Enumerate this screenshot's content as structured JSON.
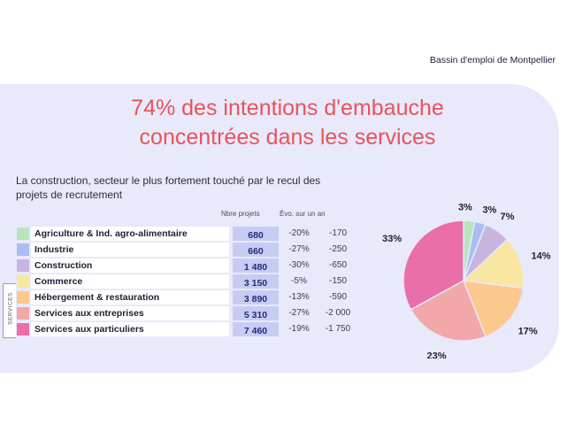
{
  "header": {
    "region": "Bassin d'emploi de Montpellier"
  },
  "title_line1": "74% des intentions d'embauche",
  "title_line2": "concentrées dans les services",
  "subtitle": "La construction, secteur le plus fortement touché par le recul des projets de recrutement",
  "table": {
    "col_projects": "Nbre projets",
    "col_evolution": "Évo. sur un an",
    "services_label": "SERVICES",
    "rows": [
      {
        "sector": "Agriculture & Ind. agro-alimentaire",
        "projects": "680",
        "evo_pct": "-20%",
        "evo_abs": "-170",
        "color": "#b7e4bd"
      },
      {
        "sector": "Industrie",
        "projects": "660",
        "evo_pct": "-27%",
        "evo_abs": "-250",
        "color": "#a9bff3"
      },
      {
        "sector": "Construction",
        "projects": "1 480",
        "evo_pct": "-30%",
        "evo_abs": "-650",
        "color": "#c6b6df"
      },
      {
        "sector": "Commerce",
        "projects": "3 150",
        "evo_pct": "-5%",
        "evo_abs": "-150",
        "color": "#f9e6a0"
      },
      {
        "sector": "Hébergement & restauration",
        "projects": "3 890",
        "evo_pct": "-13%",
        "evo_abs": "-590",
        "color": "#fbc98e"
      },
      {
        "sector": "Services aux entreprises",
        "projects": "5 310",
        "evo_pct": "-27%",
        "evo_abs": "-2 000",
        "color": "#f2a7a9"
      },
      {
        "sector": "Services aux particuliers",
        "projects": "7 460",
        "evo_pct": "-19%",
        "evo_abs": "-1 750",
        "color": "#ea6ea8"
      }
    ]
  },
  "chart_data": {
    "type": "pie",
    "title": "",
    "categories": [
      "Agriculture & Ind. agro-alimentaire",
      "Industrie",
      "Construction",
      "Commerce",
      "Hébergement & restauration",
      "Services aux entreprises",
      "Services aux particuliers"
    ],
    "values": [
      3,
      3,
      7,
      14,
      17,
      23,
      33
    ],
    "labels": [
      "3%",
      "3%",
      "7%",
      "14%",
      "17%",
      "23%",
      "33%"
    ],
    "colors": [
      "#b7e4bd",
      "#a9bff3",
      "#c6b6df",
      "#f9e6a0",
      "#fbc98e",
      "#f2a7a9",
      "#ea6ea8"
    ],
    "start": "top",
    "direction": "clockwise"
  }
}
